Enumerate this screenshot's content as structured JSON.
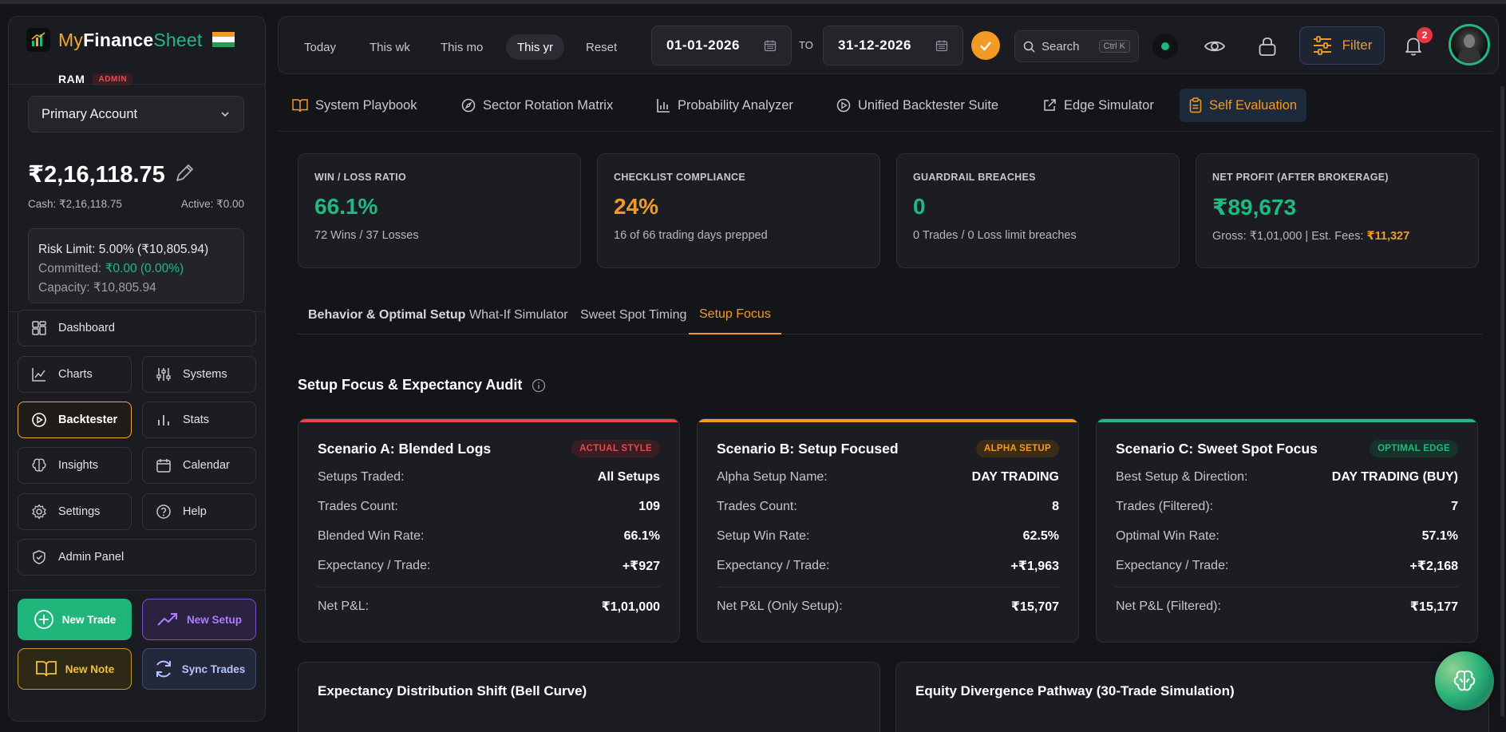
{
  "brand": {
    "my": "My",
    "finance": "Finance",
    "sheet": "Sheet"
  },
  "user": {
    "name": "RAM",
    "role_badge": "ADMIN"
  },
  "account": {
    "selected": "Primary Account",
    "balance": "₹2,16,118.75",
    "cash": "Cash: ₹2,16,118.75",
    "active": "Active: ₹0.00",
    "risk_limit": "Risk Limit: 5.00% (₹10,805.94)",
    "committed_label": "Committed: ",
    "committed_value": "₹0.00 (0.00%)",
    "capacity": "Capacity: ₹10,805.94"
  },
  "sidebar": {
    "dashboard": "Dashboard",
    "charts": "Charts",
    "systems": "Systems",
    "backtester": "Backtester",
    "stats": "Stats",
    "insights": "Insights",
    "calendar": "Calendar",
    "settings": "Settings",
    "help": "Help",
    "admin_panel": "Admin Panel",
    "new_trade": "New Trade",
    "new_setup": "New Setup",
    "new_note": "New Note",
    "sync_trades": "Sync Trades"
  },
  "topbar": {
    "ranges": [
      "Today",
      "This wk",
      "This mo",
      "This yr",
      "Reset"
    ],
    "active_range": "This yr",
    "date_from": "01-01-2026",
    "to_label": "TO",
    "date_to": "31-12-2026",
    "search_placeholder": "Search",
    "search_shortcut": "Ctrl K",
    "filter_label": "Filter",
    "notification_count": "2"
  },
  "subnav": {
    "items": [
      "System Playbook",
      "Sector Rotation Matrix",
      "Probability Analyzer",
      "Unified Backtester Suite",
      "Edge Simulator",
      "Self Evaluation"
    ],
    "active": "Self Evaluation"
  },
  "stats": [
    {
      "label": "WIN / LOSS RATIO",
      "value": "66.1%",
      "sub": "72 Wins / 37 Losses"
    },
    {
      "label": "CHECKLIST COMPLIANCE",
      "value": "24%",
      "sub": "16 of 66 trading days prepped"
    },
    {
      "label": "GUARDRAIL BREACHES",
      "value": "0",
      "sub": "0 Trades / 0 Loss limit breaches"
    },
    {
      "label": "NET PROFIT (AFTER BROKERAGE)",
      "value": "₹89,673",
      "sub": "Gross: ₹1,01,000 | Est. Fees: ",
      "sub_highlight": "₹11,327"
    }
  ],
  "tabs": [
    "Behavior & Optimal Setup",
    "What-If Simulator",
    "Sweet Spot Timing",
    "Setup Focus"
  ],
  "active_tab": "Setup Focus",
  "section_title": "Setup Focus & Expectancy Audit",
  "scenarios": [
    {
      "title": "Scenario A: Blended Logs",
      "badge": "ACTUAL STYLE",
      "accent": "#e5484d",
      "rows": [
        {
          "label": "Setups Traded:",
          "value": "All Setups"
        },
        {
          "label": "Trades Count:",
          "value": "109"
        },
        {
          "label": "Blended Win Rate:",
          "value": "66.1%"
        },
        {
          "label": "Expectancy / Trade:",
          "value": "+₹927"
        }
      ],
      "net_label": "Net P&L:",
      "net_value": "₹1,01,000"
    },
    {
      "title": "Scenario B: Setup Focused",
      "badge": "ALPHA SETUP",
      "accent": "#f39a24",
      "rows": [
        {
          "label": "Alpha Setup Name:",
          "value": "DAY TRADING"
        },
        {
          "label": "Trades Count:",
          "value": "8"
        },
        {
          "label": "Setup Win Rate:",
          "value": "62.5%"
        },
        {
          "label": "Expectancy / Trade:",
          "value": "+₹1,963"
        }
      ],
      "net_label": "Net P&L (Only Setup):",
      "net_value": "₹15,707"
    },
    {
      "title": "Scenario C: Sweet Spot Focus",
      "badge": "OPTIMAL EDGE",
      "accent": "#21b980",
      "rows": [
        {
          "label": "Best Setup & Direction:",
          "value": "DAY TRADING (BUY)"
        },
        {
          "label": "Trades (Filtered):",
          "value": "7"
        },
        {
          "label": "Optimal Win Rate:",
          "value": "57.1%"
        },
        {
          "label": "Expectancy / Trade:",
          "value": "+₹2,168"
        }
      ],
      "net_label": "Net P&L (Filtered):",
      "net_value": "₹15,177"
    }
  ],
  "bottom_cards": [
    "Expectancy Distribution Shift (Bell Curve)",
    "Equity Divergence Pathway (30-Trade Simulation)"
  ]
}
